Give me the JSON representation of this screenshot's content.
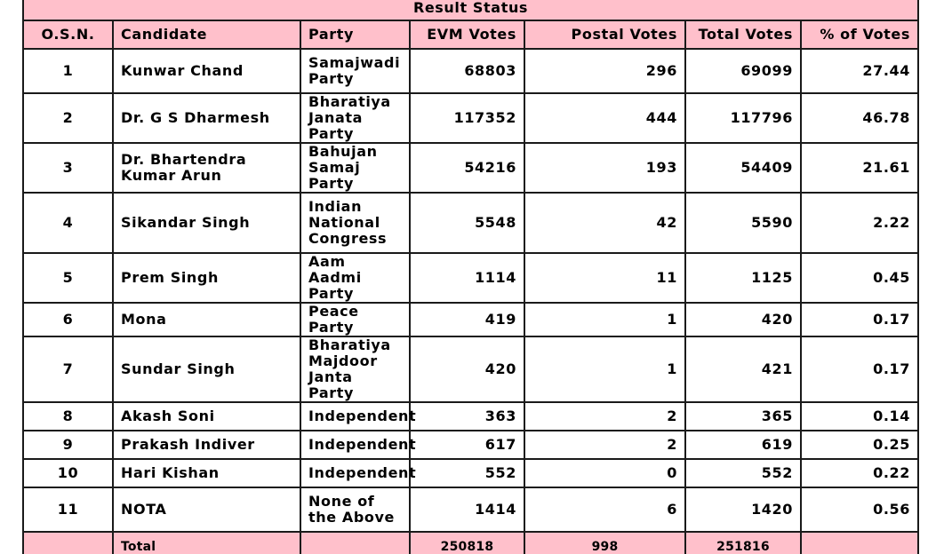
{
  "title": "Result Status",
  "columns": [
    "O.S.N.",
    "Candidate",
    "Party",
    "EVM Votes",
    "Postal Votes",
    "Total Votes",
    "% of Votes"
  ],
  "rows": [
    {
      "osn": "1",
      "candidate": "Kunwar Chand",
      "party": "Samajwadi Party",
      "evm": "68803",
      "postal": "296",
      "total": "69099",
      "pct": "27.44"
    },
    {
      "osn": "2",
      "candidate": "Dr. G S Dharmesh",
      "party": "Bharatiya Janata Party",
      "evm": "117352",
      "postal": "444",
      "total": "117796",
      "pct": "46.78"
    },
    {
      "osn": "3",
      "candidate": "Dr. Bhartendra Kumar Arun",
      "party": "Bahujan Samaj Party",
      "evm": "54216",
      "postal": "193",
      "total": "54409",
      "pct": "21.61"
    },
    {
      "osn": "4",
      "candidate": "Sikandar Singh",
      "party": "Indian National Congress",
      "evm": "5548",
      "postal": "42",
      "total": "5590",
      "pct": "2.22"
    },
    {
      "osn": "5",
      "candidate": "Prem Singh",
      "party": "Aam Aadmi Party",
      "evm": "1114",
      "postal": "11",
      "total": "1125",
      "pct": "0.45"
    },
    {
      "osn": "6",
      "candidate": "Mona",
      "party": "Peace Party",
      "evm": "419",
      "postal": "1",
      "total": "420",
      "pct": "0.17"
    },
    {
      "osn": "7",
      "candidate": "Sundar Singh",
      "party": "Bharatiya Majdoor Janta Party",
      "evm": "420",
      "postal": "1",
      "total": "421",
      "pct": "0.17"
    },
    {
      "osn": "8",
      "candidate": "Akash Soni",
      "party": "Independent",
      "evm": "363",
      "postal": "2",
      "total": "365",
      "pct": "0.14"
    },
    {
      "osn": "9",
      "candidate": "Prakash Indiver",
      "party": "Independent",
      "evm": "617",
      "postal": "2",
      "total": "619",
      "pct": "0.25"
    },
    {
      "osn": "10",
      "candidate": "Hari Kishan",
      "party": "Independent",
      "evm": "552",
      "postal": "0",
      "total": "552",
      "pct": "0.22"
    },
    {
      "osn": "11",
      "candidate": "NOTA",
      "party": "None of the Above",
      "evm": "1414",
      "postal": "6",
      "total": "1420",
      "pct": "0.56"
    }
  ],
  "totals": {
    "label": "Total",
    "evm": "250818",
    "postal": "998",
    "total": "251816"
  },
  "colors": {
    "header_bg": "#ffc0cb",
    "border": "#1a1a1a"
  }
}
